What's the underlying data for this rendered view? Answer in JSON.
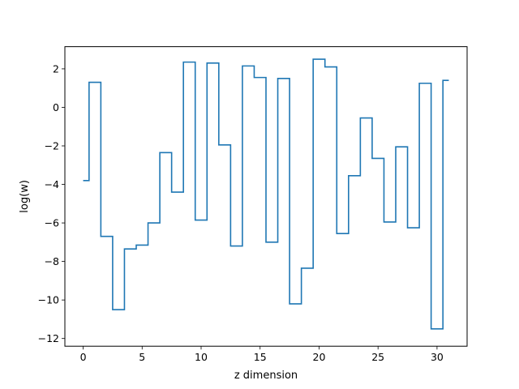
{
  "chart_data": {
    "type": "step",
    "title": "",
    "xlabel": "z dimension",
    "ylabel": "log(w)",
    "xlim": [
      -1.55,
      32.55
    ],
    "ylim": [
      -12.4,
      3.15
    ],
    "xticks": [
      0,
      5,
      10,
      15,
      20,
      25,
      30
    ],
    "yticks": [
      -12,
      -10,
      -8,
      -6,
      -4,
      -2,
      0,
      2
    ],
    "ytick_labels": [
      "−12",
      "−10",
      "−8",
      "−6",
      "−4",
      "−2",
      "0",
      "2"
    ],
    "grid": false,
    "color": "#1f77b4",
    "series": [
      {
        "x": [
          0,
          1,
          2,
          3,
          4,
          5,
          6,
          7,
          8,
          9,
          10,
          11,
          12,
          13,
          14,
          15,
          16,
          17,
          18,
          19,
          20,
          21,
          22,
          23,
          24,
          25,
          26,
          27,
          28,
          29,
          30,
          31
        ],
        "values": [
          -3.8,
          1.3,
          -6.7,
          -10.5,
          -7.35,
          -7.15,
          -6.0,
          -2.35,
          -4.4,
          2.35,
          -5.85,
          2.3,
          -1.95,
          -7.2,
          2.15,
          1.55,
          -7.0,
          1.5,
          -10.2,
          -8.35,
          2.5,
          2.1,
          -6.55,
          -3.55,
          -0.55,
          -2.65,
          -5.95,
          -2.05,
          -6.25,
          1.25,
          -11.5,
          1.4
        ]
      }
    ]
  }
}
